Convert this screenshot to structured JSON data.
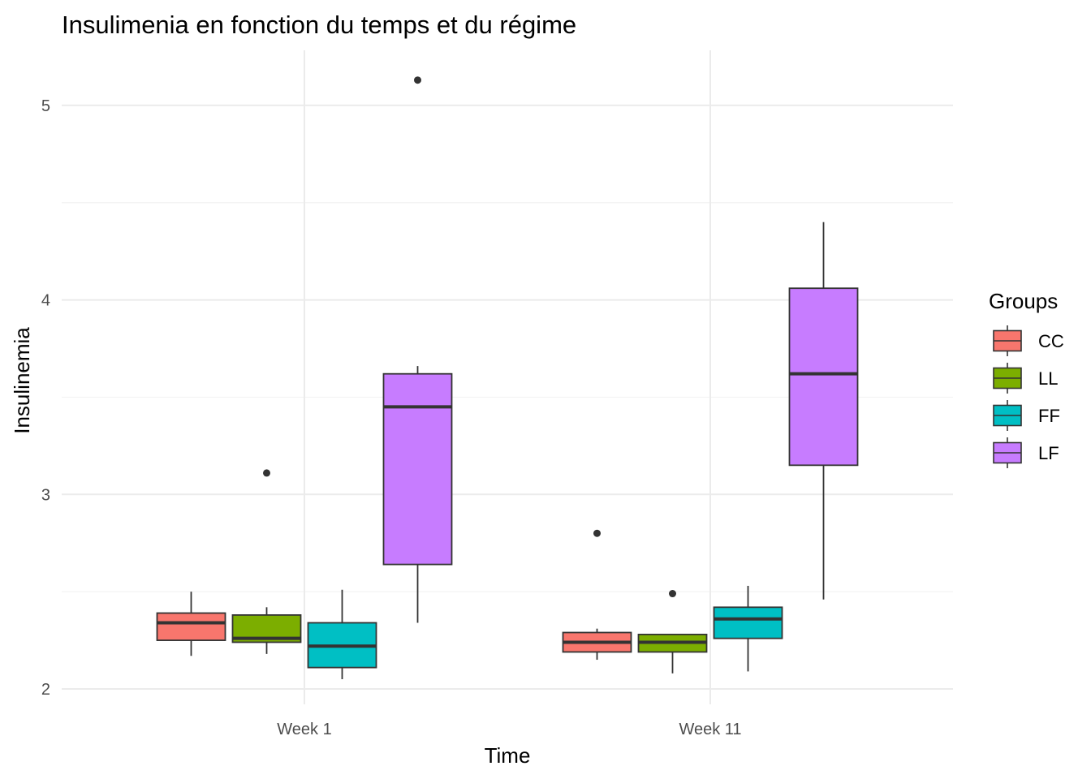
{
  "chart_data": {
    "type": "boxplot",
    "title": "Insulimenia en fonction du temps et du régime",
    "xlabel": "Time",
    "ylabel": "Insulinemia",
    "categories": [
      "Week 1",
      "Week 11"
    ],
    "ylim": [
      1.92,
      5.28
    ],
    "yticks": [
      2,
      3,
      4,
      5
    ],
    "grid": true,
    "legend": {
      "title": "Groups",
      "placement": "right"
    },
    "series": [
      {
        "name": "CC",
        "color": "#F8766D",
        "boxes": [
          {
            "min": 2.17,
            "q1": 2.25,
            "median": 2.34,
            "q3": 2.39,
            "max": 2.5,
            "outliers": []
          },
          {
            "min": 2.15,
            "q1": 2.19,
            "median": 2.24,
            "q3": 2.29,
            "max": 2.31,
            "outliers": [
              2.8
            ]
          }
        ]
      },
      {
        "name": "LL",
        "color": "#7CAE00",
        "boxes": [
          {
            "min": 2.18,
            "q1": 2.24,
            "median": 2.26,
            "q3": 2.38,
            "max": 2.42,
            "outliers": [
              3.11
            ]
          },
          {
            "min": 2.08,
            "q1": 2.19,
            "median": 2.24,
            "q3": 2.28,
            "max": 2.28,
            "outliers": [
              2.49
            ]
          }
        ]
      },
      {
        "name": "FF",
        "color": "#00BFC4",
        "boxes": [
          {
            "min": 2.05,
            "q1": 2.11,
            "median": 2.22,
            "q3": 2.34,
            "max": 2.51,
            "outliers": []
          },
          {
            "min": 2.09,
            "q1": 2.26,
            "median": 2.36,
            "q3": 2.42,
            "max": 2.53,
            "outliers": []
          }
        ]
      },
      {
        "name": "LF",
        "color": "#C77CFF",
        "boxes": [
          {
            "min": 2.34,
            "q1": 2.64,
            "median": 3.45,
            "q3": 3.62,
            "max": 3.66,
            "outliers": [
              5.13
            ]
          },
          {
            "min": 2.46,
            "q1": 3.15,
            "median": 3.62,
            "q3": 4.06,
            "max": 4.4,
            "outliers": []
          }
        ]
      }
    ]
  }
}
